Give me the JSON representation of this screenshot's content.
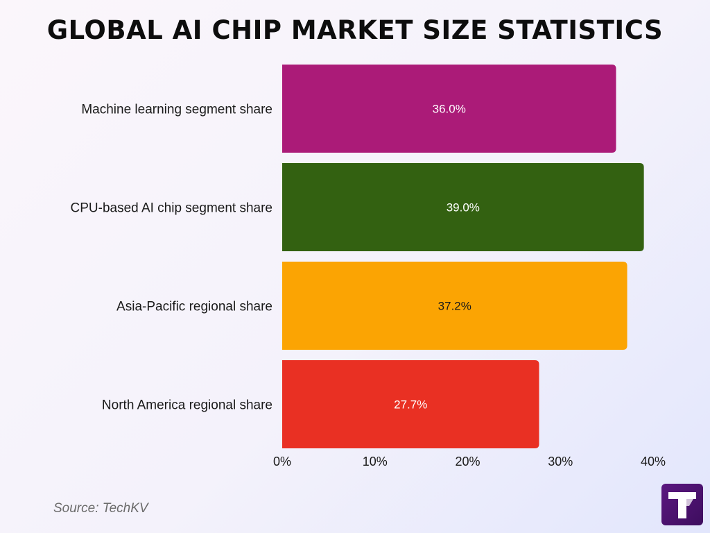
{
  "title": "GLOBAL AI CHIP MARKET SIZE STATISTICS",
  "source": "Source: TechKV",
  "logo_icon": "techkv-logo-icon",
  "chart_data": {
    "type": "bar",
    "orientation": "horizontal",
    "title": "GLOBAL AI CHIP MARKET SIZE STATISTICS",
    "categories": [
      "Machine learning segment share",
      "CPU-based AI chip segment share",
      "Asia-Pacific regional share",
      "North America regional share"
    ],
    "values": [
      36.0,
      39.0,
      37.2,
      27.7
    ],
    "data_labels": [
      "36.0%",
      "39.0%",
      "37.2%",
      "27.7%"
    ],
    "colors": [
      "#ab1b78",
      "#336111",
      "#fba403",
      "#e93023"
    ],
    "label_colors": [
      "#ffffff",
      "#ffffff",
      "#1a1a1a",
      "#ffffff"
    ],
    "xlim": [
      0,
      40
    ],
    "x_ticks": [
      0,
      10,
      20,
      30,
      40
    ],
    "x_tick_labels": [
      "0%",
      "10%",
      "20%",
      "30%",
      "40%"
    ],
    "xlabel": "",
    "ylabel": "",
    "grid": false,
    "legend": "none"
  }
}
